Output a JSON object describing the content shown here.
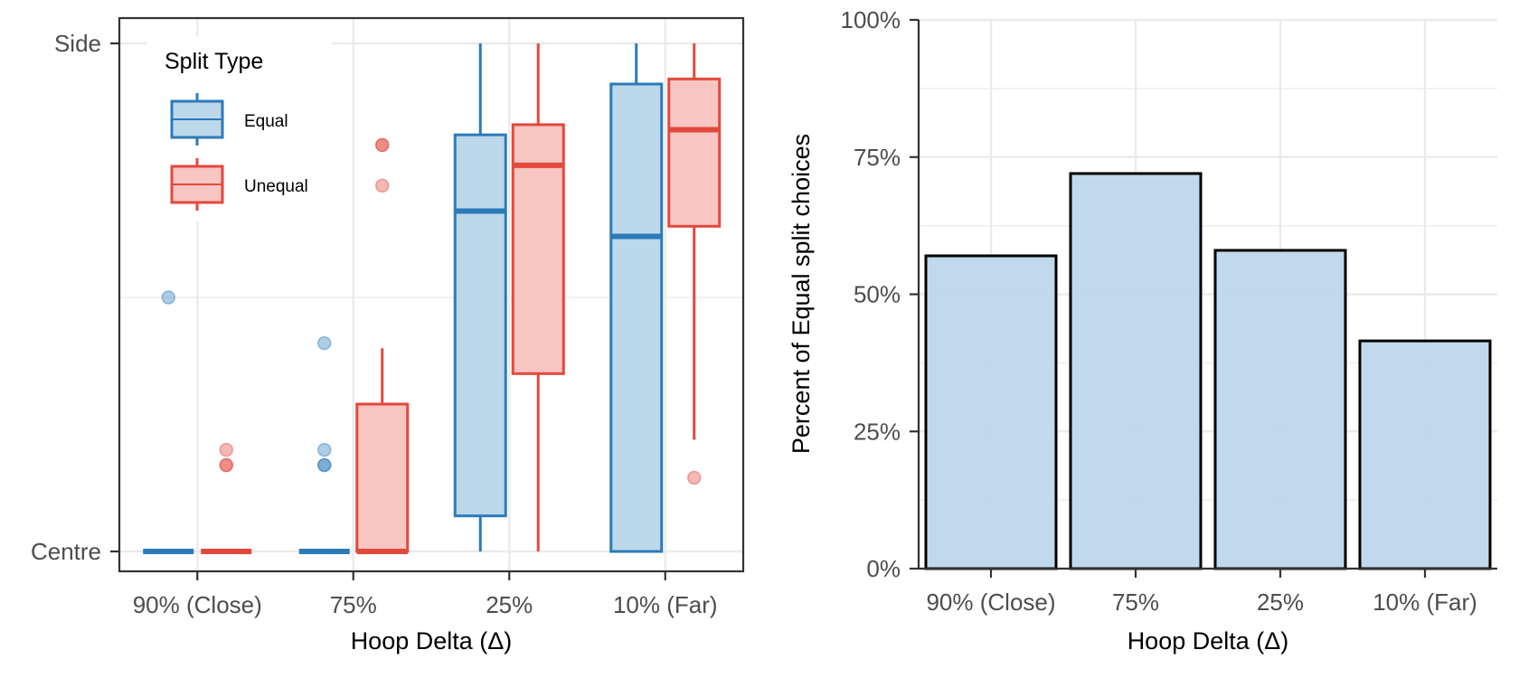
{
  "colors": {
    "equal_stroke": "#2b7bba",
    "equal_fill": "#bdd7eb",
    "unequal_stroke": "#e3483c",
    "unequal_fill": "#f7c5c2",
    "grid": "#ebebeb",
    "frame": "#333333",
    "bar_fill": "#bdd7eb",
    "bar_stroke": "#000000"
  },
  "chart_data": [
    {
      "type": "boxplot",
      "xlabel": "Hoop Delta (Δ)",
      "ylabel": "",
      "categories": [
        "90% (Close)",
        "75%",
        "25%",
        "10% (Far)"
      ],
      "y_scale": "0 = Centre, 1 = Side",
      "ylim": [
        -0.05,
        1.05
      ],
      "y_ticks": [
        {
          "value": 0,
          "label": "Centre"
        },
        {
          "value": 1,
          "label": "Side"
        }
      ],
      "grid": true,
      "legend": {
        "title": "Split Type",
        "position": "top-left",
        "entries": [
          "Equal",
          "Unequal"
        ]
      },
      "series": [
        {
          "name": "Equal",
          "boxes": [
            {
              "category": "90% (Close)",
              "min": 0,
              "q1": 0,
              "median": 0,
              "q3": 0,
              "max": 0,
              "outliers": [
                0.5
              ]
            },
            {
              "category": "75%",
              "min": 0,
              "q1": 0,
              "median": 0,
              "q3": 0,
              "max": 0,
              "outliers": [
                0.41,
                0.2,
                0.17,
                0.17
              ]
            },
            {
              "category": "25%",
              "min": 0,
              "q1": 0.07,
              "median": 0.67,
              "q3": 0.82,
              "max": 1.0,
              "outliers": []
            },
            {
              "category": "10% (Far)",
              "min": 0,
              "q1": 0,
              "median": 0.62,
              "q3": 0.92,
              "max": 1.0,
              "outliers": []
            }
          ]
        },
        {
          "name": "Unequal",
          "boxes": [
            {
              "category": "90% (Close)",
              "min": 0,
              "q1": 0,
              "median": 0,
              "q3": 0,
              "max": 0,
              "outliers": [
                0.2,
                0.17,
                0.17
              ]
            },
            {
              "category": "75%",
              "min": 0,
              "q1": 0,
              "median": 0,
              "q3": 0.29,
              "max": 0.4,
              "outliers": [
                0.8,
                0.8,
                0.72
              ]
            },
            {
              "category": "25%",
              "min": 0,
              "q1": 0.35,
              "median": 0.76,
              "q3": 0.84,
              "max": 1.0,
              "outliers": []
            },
            {
              "category": "10% (Far)",
              "min": 0.22,
              "q1": 0.64,
              "median": 0.83,
              "q3": 0.93,
              "max": 1.0,
              "outliers": [
                0.145
              ]
            }
          ]
        }
      ]
    },
    {
      "type": "bar",
      "xlabel": "Hoop Delta (Δ)",
      "ylabel": "Percent of Equal split choices",
      "categories": [
        "90% (Close)",
        "75%",
        "25%",
        "10% (Far)"
      ],
      "values": [
        57,
        72,
        58,
        41.5
      ],
      "ylim": [
        0,
        100
      ],
      "y_ticks": [
        {
          "value": 0,
          "label": "0%"
        },
        {
          "value": 25,
          "label": "25%"
        },
        {
          "value": 50,
          "label": "50%"
        },
        {
          "value": 75,
          "label": "75%"
        },
        {
          "value": 100,
          "label": "100%"
        }
      ],
      "grid": true
    }
  ]
}
